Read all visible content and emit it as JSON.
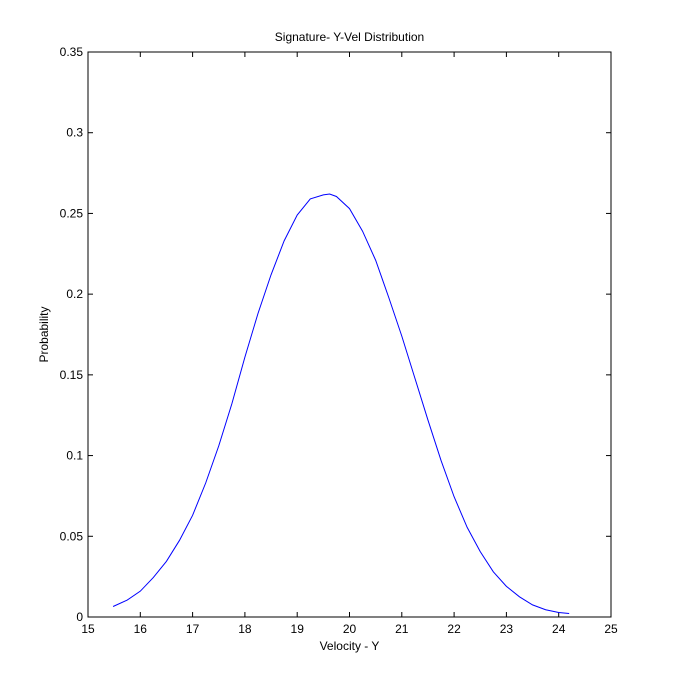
{
  "chart_data": {
    "type": "line",
    "title": "Signature- Y-Vel Distribution",
    "xlabel": "Velocity - Y",
    "ylabel": "Probability",
    "xlim": [
      15,
      25
    ],
    "ylim": [
      0,
      0.35
    ],
    "x_ticks": [
      15,
      16,
      17,
      18,
      19,
      20,
      21,
      22,
      23,
      24,
      25
    ],
    "y_ticks": [
      0,
      0.05,
      0.1,
      0.15,
      0.2,
      0.25,
      0.3,
      0.35
    ],
    "x_tick_labels": [
      "15",
      "16",
      "17",
      "18",
      "19",
      "20",
      "21",
      "22",
      "23",
      "24",
      "25"
    ],
    "y_tick_labels": [
      "0",
      "0.05",
      "0.1",
      "0.15",
      "0.2",
      "0.25",
      "0.3",
      "0.35"
    ],
    "grid": false,
    "series": [
      {
        "color": "#0000ff",
        "x": [
          15.48,
          15.75,
          16.0,
          16.25,
          16.5,
          16.75,
          17.0,
          17.25,
          17.5,
          17.75,
          18.0,
          18.25,
          18.5,
          18.75,
          19.0,
          19.25,
          19.5,
          19.62,
          19.75,
          20.0,
          20.25,
          20.5,
          20.75,
          21.0,
          21.25,
          21.5,
          21.75,
          22.0,
          22.25,
          22.5,
          22.75,
          23.0,
          23.25,
          23.5,
          23.75,
          24.0,
          24.2
        ],
        "y": [
          0.0065,
          0.0105,
          0.016,
          0.0245,
          0.0345,
          0.0475,
          0.063,
          0.083,
          0.106,
          0.132,
          0.161,
          0.188,
          0.212,
          0.233,
          0.249,
          0.259,
          0.2615,
          0.262,
          0.2605,
          0.253,
          0.239,
          0.221,
          0.198,
          0.174,
          0.148,
          0.122,
          0.097,
          0.0745,
          0.0555,
          0.0405,
          0.028,
          0.019,
          0.0125,
          0.0075,
          0.0045,
          0.0028,
          0.0022
        ]
      }
    ]
  }
}
